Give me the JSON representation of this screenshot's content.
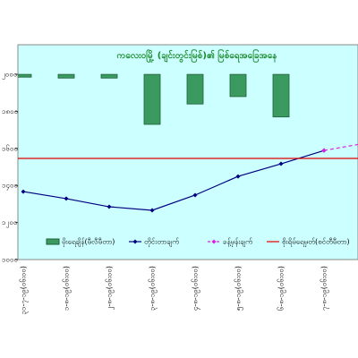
{
  "chart_data": {
    "type": "bar-line",
    "title": "ကလေးဝမြို့ (ချင်းတွင်းမြစ်)၏ မြစ်ရေအခြေအနေ",
    "categories": [
      "၃၁-၇-၁၉(၀၆း၀၀)",
      "၁-၈-၁၉(၀၆း၀၀)",
      "၂-၈-၁၉(၀၆း၀၀)",
      "၃-၈-၁၉(၀၆း၀၀)",
      "၄-၈-၁၉(၀၆း၀၀)",
      "၅-၈-၁၉(၀၆း၀၀)",
      "၆-၈-၁၉(၀၆း၀၀)",
      "၇-၈-၁၉(၀၆း၀၀)",
      null
    ],
    "ylim": [
      1000,
      2160
    ],
    "yticks": [
      {
        "value": 1000,
        "label": "၁၀၀၀"
      },
      {
        "value": 1200,
        "label": "၁၂၀၀"
      },
      {
        "value": 1400,
        "label": "၁၄၀၀"
      },
      {
        "value": 1600,
        "label": "၁၆၀၀"
      },
      {
        "value": 1800,
        "label": "၁၈၀၀"
      },
      {
        "value": 2000,
        "label": "၂၀၀၀"
      }
    ],
    "y2lim": [
      -32,
      200
    ],
    "y2_reversed": true,
    "series": [
      {
        "name": "မိုးရေချိန်(မီလီမီတာ)",
        "kind": "bar",
        "axis": "y2",
        "color": "#3a9a60",
        "values": [
          3,
          4,
          4,
          54,
          32,
          24,
          46,
          null,
          null
        ]
      },
      {
        "name": "တိုင်းတာချက်",
        "kind": "line",
        "color": "#000080",
        "values": [
          1367,
          1329,
          1285,
          1266,
          1348,
          1449,
          1517,
          1589,
          null
        ]
      },
      {
        "name": "ခန့်မှန်းချက်",
        "kind": "dashed",
        "color": "#e020e0",
        "values": [
          null,
          null,
          null,
          null,
          null,
          null,
          null,
          1589,
          1630
        ]
      },
      {
        "name": "စိုးရိမ်ရေမှတ်(စင်တီမီတာ)",
        "kind": "hline",
        "color": "#e00000",
        "value": 1546
      }
    ]
  }
}
